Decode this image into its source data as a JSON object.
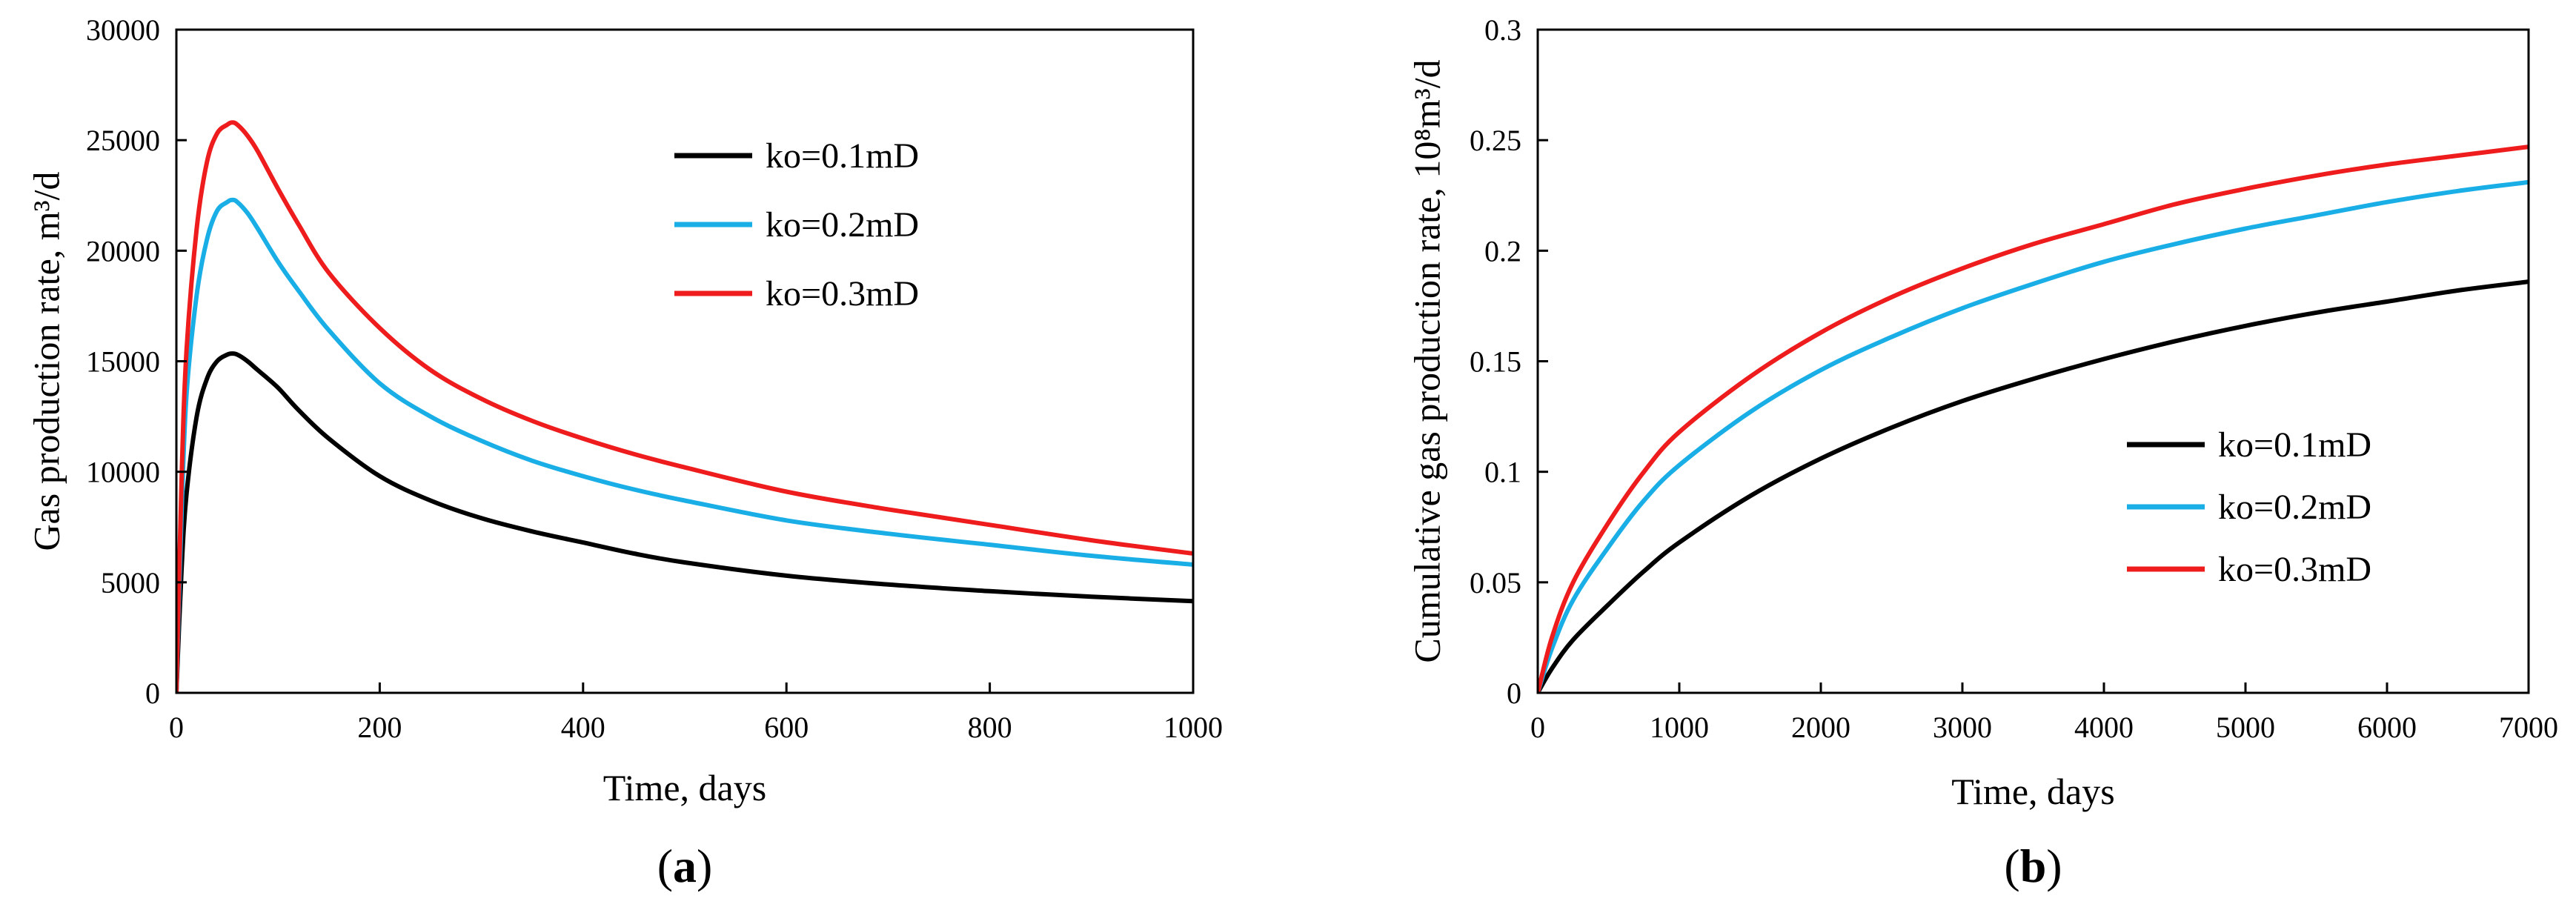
{
  "chart_data": [
    {
      "panel": "a",
      "type": "line",
      "title": "",
      "xlabel": "Time, days",
      "ylabel": "Gas production rate, m³/d",
      "xlim": [
        0,
        1000
      ],
      "ylim": [
        0,
        30000
      ],
      "xticks": [
        0,
        200,
        400,
        600,
        800,
        1000
      ],
      "yticks": [
        0,
        5000,
        10000,
        15000,
        20000,
        25000,
        30000
      ],
      "grid": false,
      "legend_position": "top-right",
      "panel_label": [
        "(",
        "a",
        ")"
      ],
      "series": [
        {
          "name": "ko=0.1mD",
          "color": "#000000",
          "x": [
            0,
            5,
            10,
            20,
            30,
            40,
            50,
            55,
            60,
            70,
            80,
            100,
            120,
            150,
            200,
            250,
            300,
            350,
            400,
            450,
            500,
            600,
            700,
            800,
            900,
            1000
          ],
          "y": [
            0,
            5500,
            9000,
            12500,
            14200,
            15000,
            15300,
            15350,
            15300,
            15000,
            14600,
            13800,
            12800,
            11500,
            9800,
            8700,
            7900,
            7300,
            6800,
            6300,
            5900,
            5300,
            4900,
            4600,
            4350,
            4150
          ]
        },
        {
          "name": "ko=0.2mD",
          "color": "#1aaee6",
          "x": [
            0,
            5,
            10,
            20,
            30,
            40,
            50,
            55,
            60,
            70,
            80,
            100,
            120,
            150,
            200,
            250,
            300,
            350,
            400,
            450,
            500,
            600,
            700,
            800,
            900,
            1000
          ],
          "y": [
            0,
            8000,
            13500,
            18000,
            20500,
            21800,
            22200,
            22300,
            22200,
            21700,
            21000,
            19500,
            18200,
            16400,
            14000,
            12500,
            11400,
            10500,
            9800,
            9200,
            8700,
            7800,
            7200,
            6700,
            6200,
            5800
          ]
        },
        {
          "name": "ko=0.3mD",
          "color": "#ee1c1c",
          "x": [
            0,
            5,
            10,
            20,
            30,
            40,
            50,
            55,
            60,
            70,
            80,
            100,
            120,
            150,
            200,
            250,
            300,
            350,
            400,
            450,
            500,
            600,
            700,
            800,
            900,
            1000
          ],
          "y": [
            0,
            9500,
            15500,
            21000,
            24000,
            25300,
            25700,
            25800,
            25700,
            25200,
            24500,
            22800,
            21200,
            19000,
            16500,
            14600,
            13300,
            12300,
            11500,
            10800,
            10200,
            9100,
            8300,
            7600,
            6900,
            6300
          ]
        }
      ]
    },
    {
      "panel": "b",
      "type": "line",
      "title": "",
      "xlabel": "Time, days",
      "ylabel": "Cumulative gas production rate, 10⁸m³/d",
      "xlim": [
        0,
        7000
      ],
      "ylim": [
        0,
        0.3
      ],
      "xticks": [
        0,
        1000,
        2000,
        3000,
        4000,
        5000,
        6000,
        7000
      ],
      "yticks": [
        0,
        0.05,
        0.1,
        0.15,
        0.2,
        0.25,
        0.3
      ],
      "ytick_labels": [
        "0",
        "0.05",
        "0.1",
        "0.15",
        "0.2",
        "0.25",
        "0.3"
      ],
      "grid": false,
      "legend_position": "right",
      "panel_label": [
        "(",
        "b",
        ")"
      ],
      "series": [
        {
          "name": "ko=0.1mD",
          "color": "#000000",
          "x": [
            0,
            100,
            250,
            500,
            750,
            1000,
            1500,
            2000,
            2500,
            3000,
            3500,
            4000,
            4500,
            5000,
            5500,
            6000,
            6500,
            7000
          ],
          "y": [
            0,
            0.011,
            0.024,
            0.04,
            0.055,
            0.068,
            0.089,
            0.106,
            0.12,
            0.132,
            0.142,
            0.151,
            0.159,
            0.166,
            0.172,
            0.177,
            0.182,
            0.186
          ]
        },
        {
          "name": "ko=0.2mD",
          "color": "#1aaee6",
          "x": [
            0,
            100,
            250,
            500,
            750,
            1000,
            1500,
            2000,
            2500,
            3000,
            3500,
            4000,
            4500,
            5000,
            5500,
            6000,
            6500,
            7000
          ],
          "y": [
            0,
            0.02,
            0.042,
            0.066,
            0.087,
            0.103,
            0.127,
            0.146,
            0.161,
            0.174,
            0.185,
            0.195,
            0.203,
            0.21,
            0.216,
            0.222,
            0.227,
            0.231
          ]
        },
        {
          "name": "ko=0.3mD",
          "color": "#ee1c1c",
          "x": [
            0,
            100,
            250,
            500,
            750,
            1000,
            1500,
            2000,
            2500,
            3000,
            3500,
            4000,
            4500,
            5000,
            5500,
            6000,
            6500,
            7000
          ],
          "y": [
            0,
            0.025,
            0.05,
            0.077,
            0.1,
            0.118,
            0.143,
            0.163,
            0.179,
            0.192,
            0.203,
            0.212,
            0.221,
            0.228,
            0.234,
            0.239,
            0.243,
            0.247
          ]
        }
      ]
    }
  ]
}
